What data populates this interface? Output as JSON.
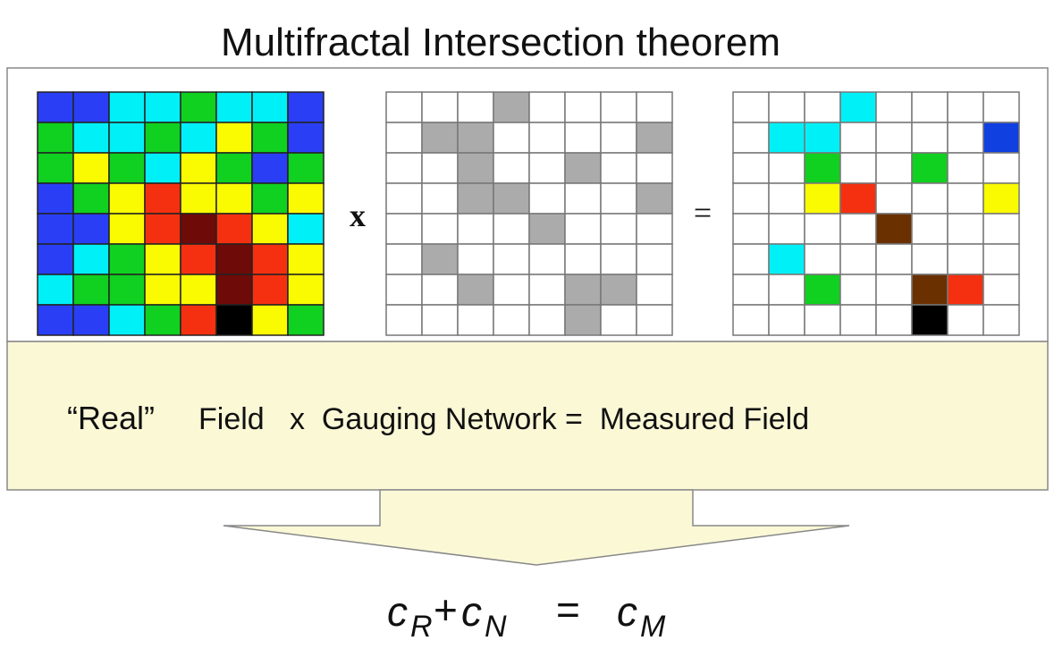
{
  "title": "Multifractal Intersection theorem",
  "operators": {
    "times": "x",
    "equals": "="
  },
  "caption": {
    "real": "“Real”",
    "rest": "Field   x  Gauging Network =  Measured Field"
  },
  "equation": {
    "terms": [
      {
        "symbol": "c",
        "subscript": "R"
      },
      {
        "symbol": "c",
        "subscript": "N"
      },
      {
        "symbol": "c",
        "subscript": "M"
      }
    ],
    "plus": "+",
    "equals": "="
  }
}
